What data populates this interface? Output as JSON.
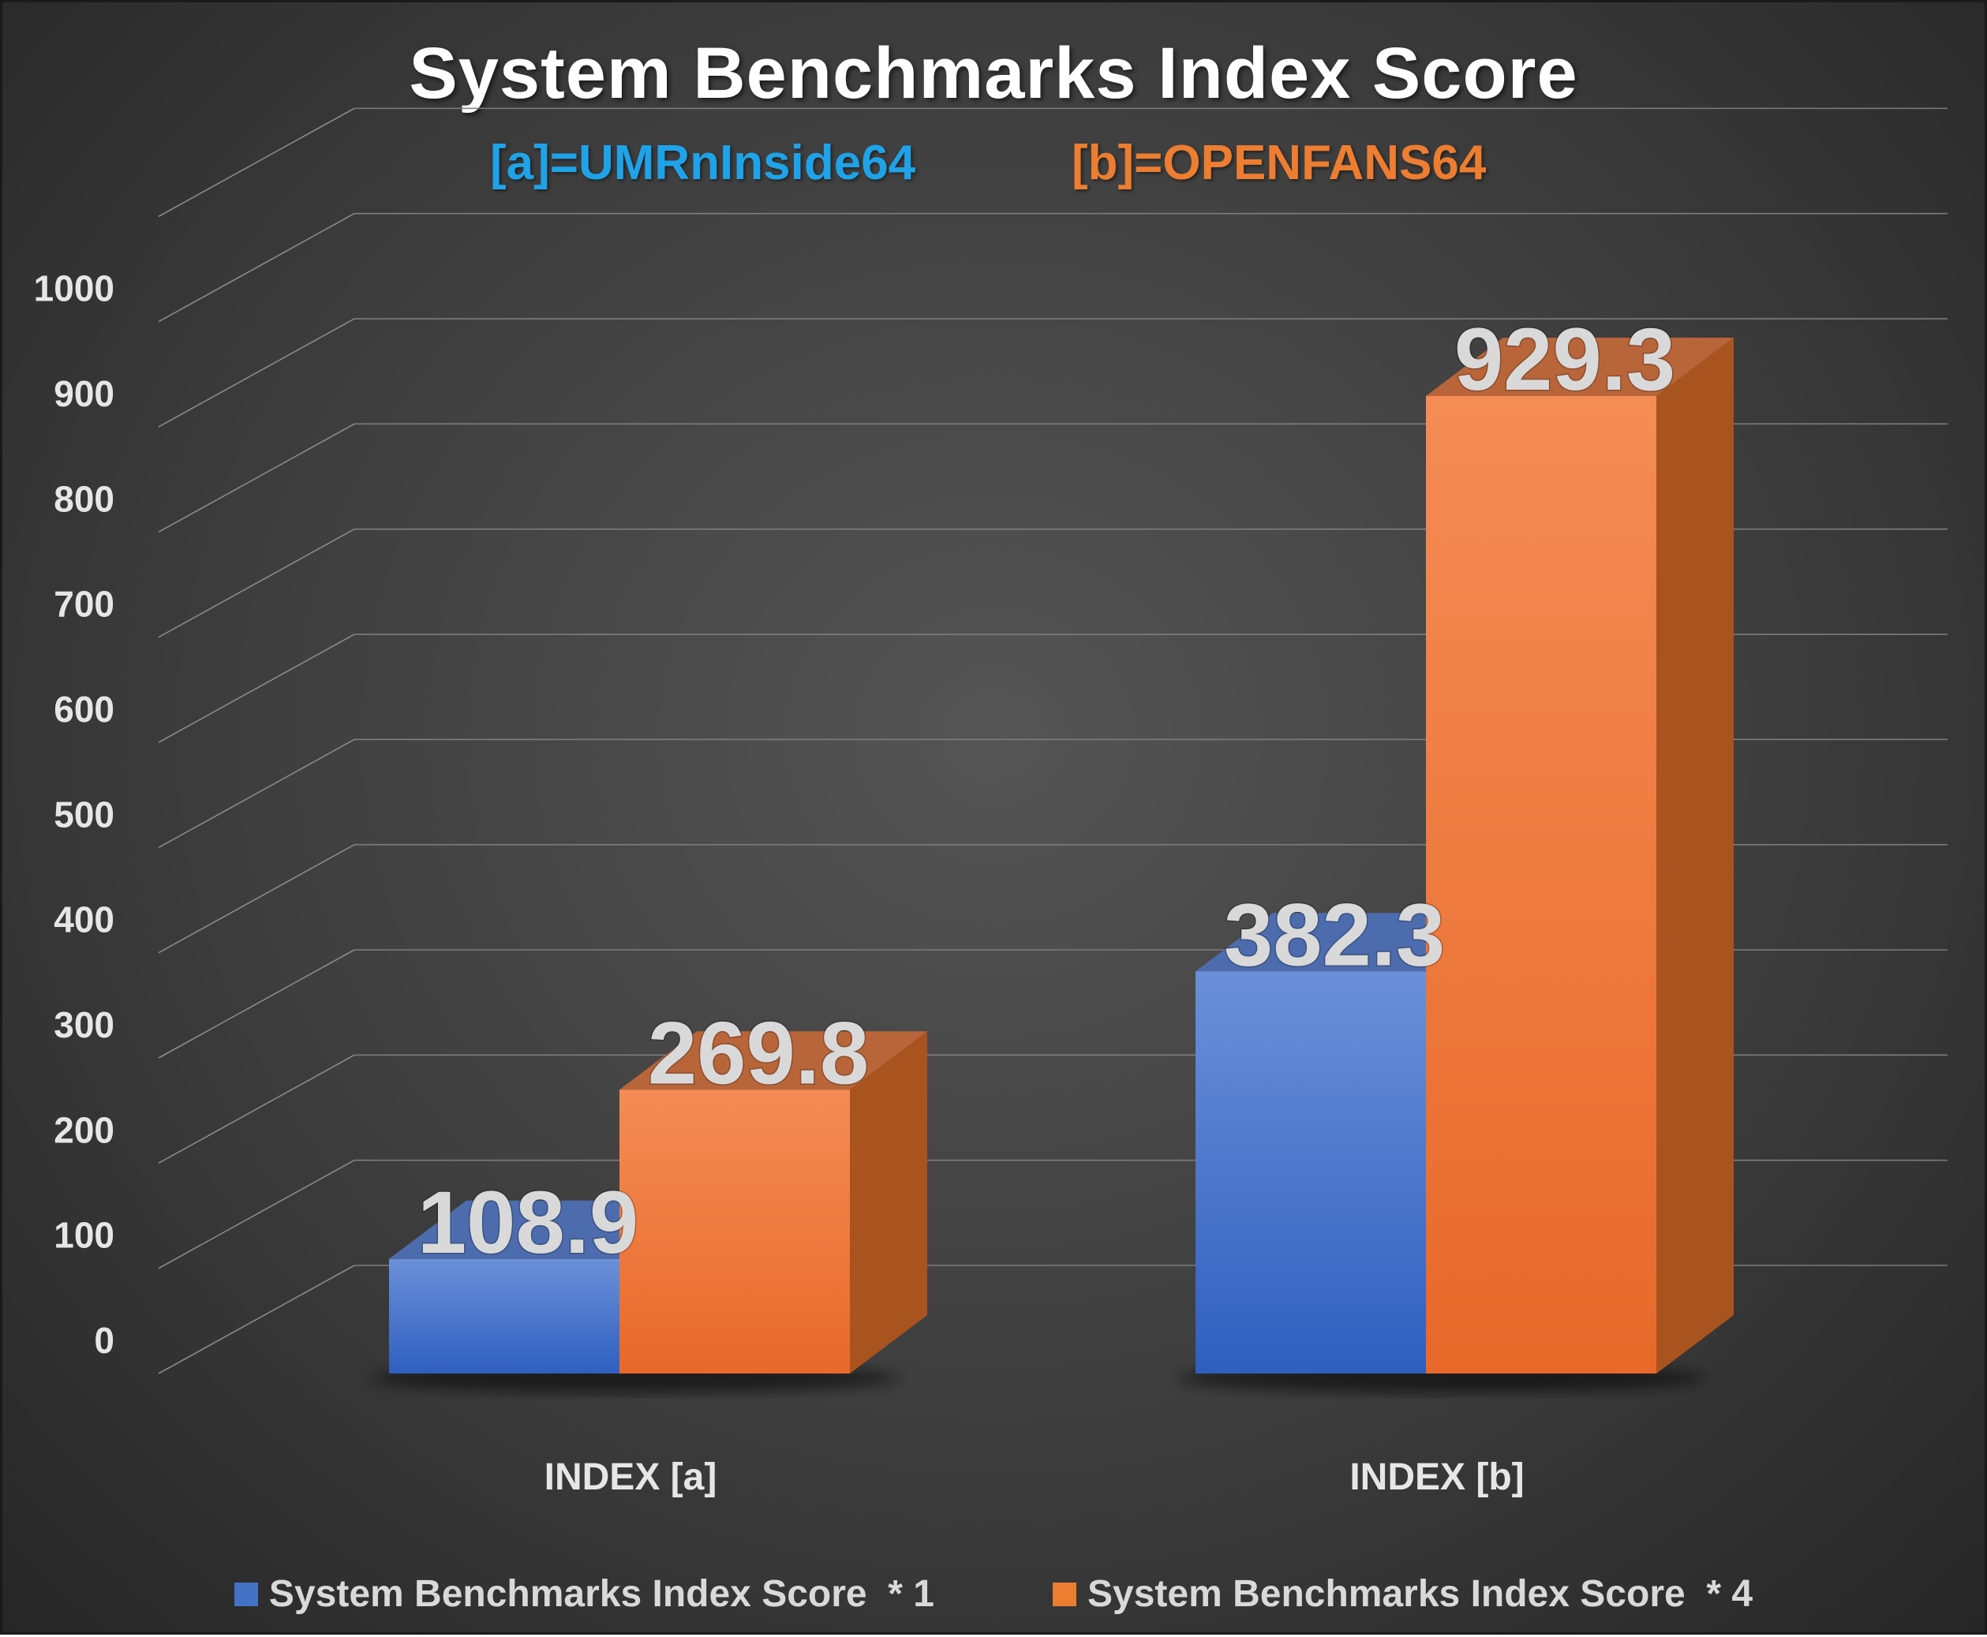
{
  "chart_data": {
    "type": "bar",
    "title": "System Benchmarks Index Score",
    "subtitle_a": "[a]=UMRnInside64",
    "subtitle_b": "[b]=OPENFANS64",
    "categories": [
      "INDEX [a]",
      "INDEX [b]"
    ],
    "series": [
      {
        "name": "System Benchmarks Index Score  * 1",
        "values": [
          108.9,
          382.3
        ],
        "color": "#4472c4"
      },
      {
        "name": "System Benchmarks Index Score  * 4",
        "values": [
          269.8,
          929.3
        ],
        "color": "#ed7d31"
      }
    ],
    "data_labels": [
      "108.9",
      "382.3",
      "269.8",
      "929.3"
    ],
    "y_ticks": [
      "0",
      "100",
      "200",
      "300",
      "400",
      "500",
      "600",
      "700",
      "800",
      "900",
      "1000"
    ],
    "ylim": [
      0,
      1100
    ],
    "grid": true,
    "legend_position": "bottom",
    "colors": {
      "subtitle_a": "#1fa3e8",
      "subtitle_b": "#ed7d31"
    }
  }
}
